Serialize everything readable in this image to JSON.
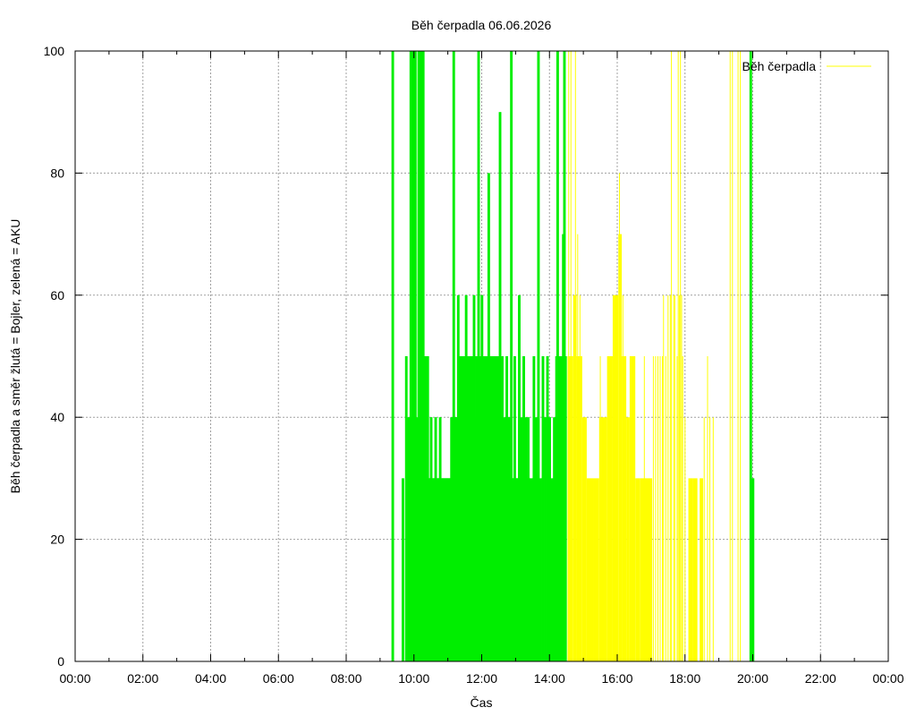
{
  "chart_data": {
    "type": "bar",
    "title": "Běh čerpadla 06.06.2026",
    "xlabel": "Čas",
    "ylabel": "Běh čerpadla a směr žlutá = Bojler, zelená = AKU",
    "xlim": [
      "00:00",
      "24:00"
    ],
    "ylim": [
      0,
      100
    ],
    "grid": true,
    "legend": {
      "position": "top-right",
      "label": "Běh čerpadla",
      "color": "#ffff00"
    },
    "x_ticks": [
      "00:00",
      "02:00",
      "04:00",
      "06:00",
      "08:00",
      "10:00",
      "12:00",
      "14:00",
      "16:00",
      "18:00",
      "20:00",
      "22:00",
      "00:00"
    ],
    "y_ticks": [
      "0",
      "20",
      "40",
      "60",
      "80",
      "100"
    ],
    "colors": {
      "AKU": "#00ee00",
      "Bojler": "#ffff00"
    },
    "series": [
      {
        "name": "AKU",
        "color": "#00ee00",
        "points": [
          [
            "09:24",
            100
          ],
          [
            "09:42",
            30
          ],
          [
            "09:48",
            50
          ],
          [
            "09:52",
            40
          ],
          [
            "09:56",
            100
          ],
          [
            "09:58",
            100
          ],
          [
            "10:00",
            100
          ],
          [
            "10:02",
            40
          ],
          [
            "10:04",
            100
          ],
          [
            "10:06",
            30
          ],
          [
            "10:08",
            40
          ],
          [
            "10:10",
            100
          ],
          [
            "10:12",
            30
          ],
          [
            "10:14",
            100
          ],
          [
            "10:16",
            40
          ],
          [
            "10:18",
            100
          ],
          [
            "10:20",
            30
          ],
          [
            "10:22",
            50
          ],
          [
            "10:24",
            30
          ],
          [
            "10:26",
            50
          ],
          [
            "10:28",
            30
          ],
          [
            "10:30",
            30
          ],
          [
            "10:32",
            40
          ],
          [
            "10:34",
            30
          ],
          [
            "10:36",
            30
          ],
          [
            "10:38",
            30
          ],
          [
            "10:40",
            40
          ],
          [
            "10:42",
            30
          ],
          [
            "10:44",
            30
          ],
          [
            "10:46",
            30
          ],
          [
            "10:48",
            40
          ],
          [
            "10:50",
            30
          ],
          [
            "10:52",
            30
          ],
          [
            "10:54",
            30
          ],
          [
            "10:56",
            30
          ],
          [
            "10:58",
            30
          ],
          [
            "11:00",
            30
          ],
          [
            "11:02",
            30
          ],
          [
            "11:04",
            30
          ],
          [
            "11:06",
            30
          ],
          [
            "11:08",
            40
          ],
          [
            "11:10",
            30
          ],
          [
            "11:12",
            100
          ],
          [
            "11:14",
            40
          ],
          [
            "11:16",
            40
          ],
          [
            "11:18",
            40
          ],
          [
            "11:20",
            60
          ],
          [
            "11:22",
            50
          ],
          [
            "11:24",
            50
          ],
          [
            "11:26",
            50
          ],
          [
            "11:28",
            50
          ],
          [
            "11:30",
            40
          ],
          [
            "11:32",
            50
          ],
          [
            "11:34",
            60
          ],
          [
            "11:36",
            50
          ],
          [
            "11:38",
            50
          ],
          [
            "11:40",
            40
          ],
          [
            "11:42",
            50
          ],
          [
            "11:44",
            50
          ],
          [
            "11:46",
            50
          ],
          [
            "11:48",
            60
          ],
          [
            "11:50",
            40
          ],
          [
            "11:52",
            50
          ],
          [
            "11:54",
            50
          ],
          [
            "11:56",
            100
          ],
          [
            "11:58",
            50
          ],
          [
            "12:00",
            50
          ],
          [
            "12:02",
            60
          ],
          [
            "12:04",
            50
          ],
          [
            "12:06",
            40
          ],
          [
            "12:08",
            50
          ],
          [
            "12:10",
            50
          ],
          [
            "12:12",
            40
          ],
          [
            "12:14",
            80
          ],
          [
            "12:16",
            50
          ],
          [
            "12:18",
            40
          ],
          [
            "12:20",
            50
          ],
          [
            "12:22",
            40
          ],
          [
            "12:24",
            50
          ],
          [
            "12:26",
            40
          ],
          [
            "12:28",
            50
          ],
          [
            "12:30",
            40
          ],
          [
            "12:32",
            50
          ],
          [
            "12:34",
            90
          ],
          [
            "12:36",
            40
          ],
          [
            "12:38",
            50
          ],
          [
            "12:40",
            30
          ],
          [
            "12:42",
            40
          ],
          [
            "12:44",
            30
          ],
          [
            "12:46",
            50
          ],
          [
            "12:48",
            30
          ],
          [
            "12:50",
            40
          ],
          [
            "12:52",
            30
          ],
          [
            "12:54",
            100
          ],
          [
            "12:56",
            30
          ],
          [
            "12:58",
            30
          ],
          [
            "13:00",
            50
          ],
          [
            "13:02",
            30
          ],
          [
            "13:04",
            30
          ],
          [
            "13:06",
            30
          ],
          [
            "13:08",
            60
          ],
          [
            "13:10",
            30
          ],
          [
            "13:12",
            40
          ],
          [
            "13:14",
            30
          ],
          [
            "13:16",
            50
          ],
          [
            "13:18",
            30
          ],
          [
            "13:20",
            40
          ],
          [
            "13:22",
            30
          ],
          [
            "13:24",
            40
          ],
          [
            "13:26",
            30
          ],
          [
            "13:30",
            30
          ],
          [
            "13:34",
            50
          ],
          [
            "13:38",
            40
          ],
          [
            "13:42",
            100
          ],
          [
            "13:46",
            30
          ],
          [
            "13:50",
            50
          ],
          [
            "13:54",
            40
          ],
          [
            "13:58",
            50
          ],
          [
            "14:02",
            40
          ],
          [
            "14:06",
            30
          ],
          [
            "14:10",
            40
          ],
          [
            "14:14",
            50
          ],
          [
            "14:16",
            100
          ],
          [
            "14:18",
            40
          ],
          [
            "14:20",
            50
          ],
          [
            "14:22",
            40
          ],
          [
            "14:24",
            50
          ],
          [
            "14:26",
            70
          ],
          [
            "14:28",
            100
          ],
          [
            "14:30",
            50
          ],
          [
            "19:58",
            100
          ],
          [
            "20:02",
            30
          ]
        ]
      },
      {
        "name": "Bojler",
        "color": "#ffff00",
        "segments": [
          [
            "14:32",
            "14:42",
            50
          ],
          [
            "14:42",
            "14:48",
            60
          ],
          [
            "14:48",
            "14:58",
            50
          ],
          [
            "14:58",
            "15:06",
            40
          ],
          [
            "15:06",
            "15:18",
            30
          ],
          [
            "15:18",
            "15:28",
            30
          ],
          [
            "15:28",
            "15:42",
            40
          ],
          [
            "15:42",
            "15:52",
            50
          ],
          [
            "15:52",
            "16:02",
            60
          ],
          [
            "16:02",
            "16:08",
            70
          ],
          [
            "16:08",
            "16:16",
            50
          ],
          [
            "16:16",
            "16:22",
            40
          ],
          [
            "16:22",
            "16:32",
            50
          ],
          [
            "16:32",
            "16:40",
            30
          ],
          [
            "16:40",
            "17:02",
            30
          ],
          [
            "18:06",
            "18:14",
            30
          ],
          [
            "18:14",
            "18:22",
            30
          ],
          [
            "18:26",
            "18:32",
            30
          ]
        ],
        "spikes": [
          [
            "14:34",
            100
          ],
          [
            "14:38",
            100
          ],
          [
            "14:46",
            100
          ],
          [
            "14:50",
            70
          ],
          [
            "14:54",
            60
          ],
          [
            "15:30",
            50
          ],
          [
            "15:56",
            60
          ],
          [
            "16:04",
            80
          ],
          [
            "16:10",
            60
          ],
          [
            "16:48",
            50
          ],
          [
            "17:04",
            50
          ],
          [
            "17:08",
            50
          ],
          [
            "17:12",
            50
          ],
          [
            "17:16",
            50
          ],
          [
            "17:20",
            50
          ],
          [
            "17:22",
            60
          ],
          [
            "17:26",
            50
          ],
          [
            "17:30",
            60
          ],
          [
            "17:34",
            60
          ],
          [
            "17:36",
            100
          ],
          [
            "17:40",
            60
          ],
          [
            "17:42",
            60
          ],
          [
            "17:46",
            50
          ],
          [
            "17:48",
            100
          ],
          [
            "17:50",
            60
          ],
          [
            "17:52",
            100
          ],
          [
            "17:54",
            60
          ],
          [
            "17:56",
            50
          ],
          [
            "18:00",
            40
          ],
          [
            "18:34",
            40
          ],
          [
            "18:40",
            50
          ],
          [
            "18:44",
            40
          ],
          [
            "18:50",
            40
          ],
          [
            "19:20",
            100
          ],
          [
            "19:24",
            100
          ],
          [
            "19:34",
            100
          ],
          [
            "19:38",
            100
          ]
        ]
      }
    ]
  }
}
